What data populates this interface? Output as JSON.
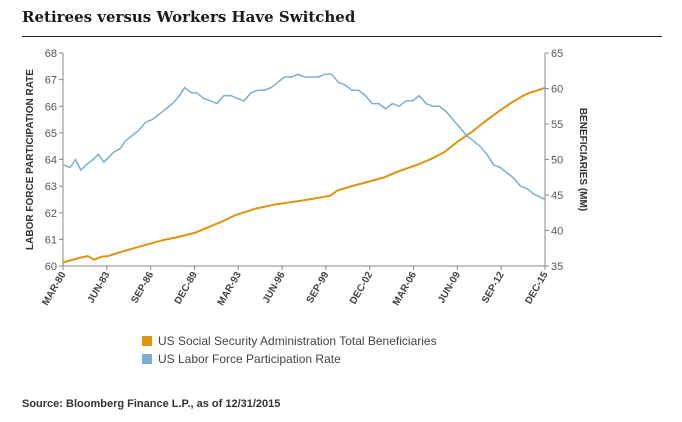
{
  "title": "Retirees versus Workers Have Switched",
  "source": "Source: Bloomberg Finance L.P., as of 12/31/2015",
  "colors": {
    "lfpr": "#7aaed6",
    "beneficiaries": "#e0930f",
    "axis": "#888888"
  },
  "chart_data": {
    "type": "line",
    "ylabel_left": "LABOR FORCE PARTICIPATION RATE",
    "ylabel_right": "BENEFICIARIES (MM)",
    "ylim_left": [
      60,
      68
    ],
    "ylim_right": [
      35,
      65
    ],
    "yticks_left": [
      "60",
      "61",
      "62",
      "63",
      "64",
      "65",
      "66",
      "67",
      "68"
    ],
    "yticks_right": [
      "35",
      "40",
      "45",
      "50",
      "55",
      "60",
      "65"
    ],
    "x_tick_labels": [
      "MAR-80",
      "JUN-83",
      "SEP-86",
      "DEC-89",
      "MAR-93",
      "JUN-96",
      "SEP-99",
      "DEC-02",
      "MAR-06",
      "JUN-09",
      "SEP-12",
      "DEC-15"
    ],
    "x_range": [
      1980.17,
      2015.92
    ],
    "series": [
      {
        "name": "US Social Security Administration Total Beneficiaries",
        "axis": "right",
        "x": [
          1980.17,
          1981.5,
          1982.0,
          1982.5,
          1983.0,
          1983.5,
          1984.5,
          1986.0,
          1987.5,
          1988.5,
          1990.0,
          1991.0,
          1992.0,
          1993.0,
          1994.5,
          1996.0,
          1997.5,
          1998.5,
          2000.0,
          2000.5,
          2001.5,
          2002.5,
          2004.0,
          2005.0,
          2006.5,
          2007.5,
          2008.5,
          2009.5,
          2010.5,
          2011.5,
          2012.5,
          2013.5,
          2014.5,
          2015.92
        ],
        "y": [
          35.5,
          36.2,
          36.4,
          35.9,
          36.3,
          36.4,
          37.0,
          37.8,
          38.6,
          39.0,
          39.7,
          40.5,
          41.3,
          42.2,
          43.1,
          43.7,
          44.1,
          44.4,
          44.9,
          45.6,
          46.2,
          46.7,
          47.5,
          48.3,
          49.3,
          50.1,
          51.1,
          52.6,
          53.9,
          55.4,
          56.8,
          58.1,
          59.2,
          60.1
        ]
      },
      {
        "name": "US Labor Force Participation Rate",
        "axis": "left",
        "x": [
          1980.17,
          1980.7,
          1981.1,
          1981.5,
          1981.9,
          1982.4,
          1982.8,
          1983.2,
          1983.6,
          1984.0,
          1984.4,
          1984.8,
          1985.3,
          1985.8,
          1986.3,
          1986.8,
          1987.3,
          1987.8,
          1988.3,
          1988.8,
          1989.2,
          1989.7,
          1990.1,
          1990.6,
          1991.1,
          1991.6,
          1992.1,
          1992.6,
          1993.1,
          1993.6,
          1994.1,
          1994.6,
          1995.1,
          1995.6,
          1996.1,
          1996.6,
          1997.1,
          1997.6,
          1998.1,
          1998.6,
          1999.1,
          1999.6,
          2000.1,
          2000.6,
          2001.1,
          2001.6,
          2002.1,
          2002.6,
          2003.1,
          2003.6,
          2004.1,
          2004.6,
          2005.1,
          2005.6,
          2006.1,
          2006.6,
          2007.1,
          2007.6,
          2008.1,
          2008.6,
          2009.1,
          2009.6,
          2010.1,
          2010.6,
          2011.1,
          2011.6,
          2012.1,
          2012.6,
          2013.1,
          2013.6,
          2014.1,
          2014.6,
          2015.1,
          2015.5,
          2015.92
        ],
        "y": [
          63.8,
          63.7,
          64.0,
          63.6,
          63.8,
          64.0,
          64.2,
          63.9,
          64.1,
          64.3,
          64.4,
          64.7,
          64.9,
          65.1,
          65.4,
          65.5,
          65.7,
          65.9,
          66.1,
          66.4,
          66.7,
          66.5,
          66.5,
          66.3,
          66.2,
          66.1,
          66.4,
          66.4,
          66.3,
          66.2,
          66.5,
          66.6,
          66.6,
          66.7,
          66.9,
          67.1,
          67.1,
          67.2,
          67.1,
          67.1,
          67.1,
          67.2,
          67.2,
          66.9,
          66.8,
          66.6,
          66.6,
          66.4,
          66.1,
          66.1,
          65.9,
          66.1,
          66.0,
          66.2,
          66.2,
          66.4,
          66.1,
          66.0,
          66.0,
          65.8,
          65.5,
          65.2,
          64.9,
          64.7,
          64.5,
          64.2,
          63.8,
          63.7,
          63.5,
          63.3,
          63.0,
          62.9,
          62.7,
          62.6,
          62.5
        ]
      }
    ]
  }
}
